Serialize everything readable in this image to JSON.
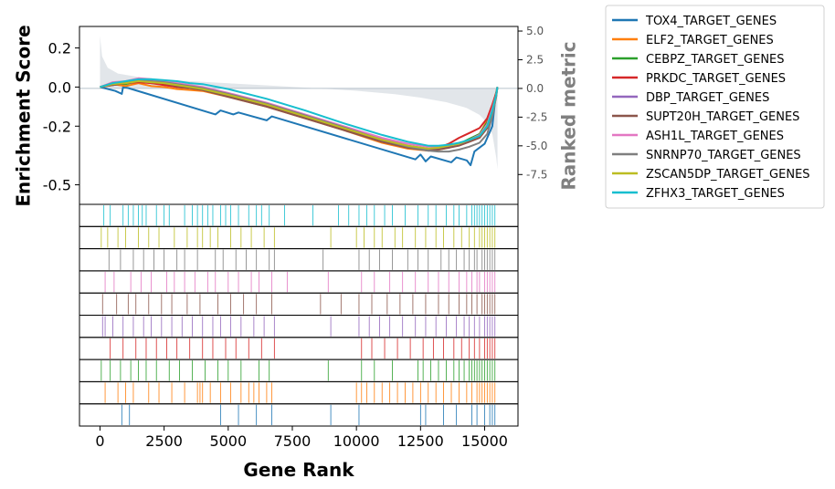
{
  "chart_data": {
    "type": "line",
    "title": "",
    "xlabel": "Gene Rank",
    "ylabel": "Enrichment Score",
    "y2label": "Ranked metric",
    "xlim": [
      -800,
      16300
    ],
    "ylim": [
      -0.6,
      0.31
    ],
    "y2lim": [
      -10.1,
      5.4
    ],
    "x_ticks": [
      0,
      2500,
      5000,
      7500,
      10000,
      12500,
      15000
    ],
    "x_tick_labels": [
      "0",
      "2500",
      "5000",
      "7500",
      "10000",
      "12500",
      "15000"
    ],
    "y_ticks": [
      0.2,
      0.0,
      -0.2,
      -0.5
    ],
    "y_tick_labels": [
      "0.2",
      "0.0",
      "-0.2",
      "-0.5"
    ],
    "y2_ticks": [
      5.0,
      2.5,
      0.0,
      -2.5,
      -5.0,
      -7.5
    ],
    "y2_tick_labels": [
      "5.0",
      "2.5",
      "0.0",
      "-2.5",
      "-5.0",
      "-7.5"
    ],
    "grid": false,
    "legend_position": "outside-right",
    "n_genes": 15500,
    "ranked_metric": {
      "x": [
        0,
        80,
        300,
        700,
        1500,
        3000,
        5000,
        7000,
        8500,
        10000,
        11500,
        12500,
        13500,
        14300,
        14800,
        15100,
        15300,
        15450,
        15500
      ],
      "y": [
        4.6,
        2.8,
        1.8,
        1.3,
        1.0,
        0.7,
        0.45,
        0.2,
        0.0,
        -0.2,
        -0.5,
        -0.8,
        -1.2,
        -1.7,
        -2.3,
        -3.0,
        -4.0,
        -6.0,
        -7.0
      ],
      "color": "#d5dbe1"
    },
    "series": [
      {
        "name": "TOX4_TARGET_GENES",
        "color": "#1f77b4",
        "x": [
          0,
          600,
          850,
          900,
          1100,
          4500,
          4700,
          5200,
          5400,
          6500,
          6700,
          12300,
          12500,
          12700,
          12900,
          13700,
          13900,
          14300,
          14450,
          14600,
          15000,
          15300,
          15400,
          15500
        ],
        "y": [
          0.0,
          -0.02,
          -0.035,
          0.0,
          -0.005,
          -0.14,
          -0.12,
          -0.14,
          -0.13,
          -0.17,
          -0.15,
          -0.37,
          -0.345,
          -0.38,
          -0.355,
          -0.385,
          -0.36,
          -0.375,
          -0.4,
          -0.33,
          -0.29,
          -0.2,
          -0.08,
          0.0
        ]
      },
      {
        "name": "ELF2_TARGET_GENES",
        "color": "#ff7f0e",
        "x": [
          0,
          500,
          1000,
          1500,
          2000,
          2500,
          3000,
          3500,
          4000,
          5000,
          6500,
          8000,
          9500,
          11000,
          12000,
          12800,
          13200,
          13600,
          14000,
          14400,
          14800,
          15100,
          15300,
          15450,
          15500
        ],
        "y": [
          0.0,
          0.015,
          0.005,
          0.02,
          0.005,
          0.0,
          -0.01,
          -0.015,
          -0.02,
          -0.05,
          -0.1,
          -0.16,
          -0.22,
          -0.285,
          -0.315,
          -0.325,
          -0.32,
          -0.31,
          -0.29,
          -0.27,
          -0.24,
          -0.17,
          -0.1,
          -0.03,
          0.0
        ]
      },
      {
        "name": "CEBPZ_TARGET_GENES",
        "color": "#2ca02c",
        "x": [
          0,
          500,
          1000,
          1500,
          2000,
          2500,
          3000,
          3500,
          4000,
          5000,
          6500,
          8000,
          9500,
          11000,
          12000,
          12800,
          13200,
          13600,
          14000,
          14400,
          14800,
          15100,
          15300,
          15450,
          15500
        ],
        "y": [
          0.0,
          0.02,
          0.015,
          0.03,
          0.02,
          0.015,
          0.0,
          -0.005,
          -0.01,
          -0.04,
          -0.09,
          -0.15,
          -0.21,
          -0.27,
          -0.305,
          -0.32,
          -0.315,
          -0.305,
          -0.29,
          -0.265,
          -0.24,
          -0.18,
          -0.1,
          -0.03,
          0.0
        ]
      },
      {
        "name": "PRKDC_TARGET_GENES",
        "color": "#d62728",
        "x": [
          0,
          500,
          1000,
          1500,
          2000,
          2500,
          3000,
          3500,
          4000,
          5000,
          6500,
          8000,
          9500,
          11000,
          12000,
          12800,
          13200,
          13600,
          14000,
          14400,
          14800,
          15100,
          15300,
          15450,
          15500
        ],
        "y": [
          0.0,
          0.01,
          0.02,
          0.025,
          0.02,
          0.01,
          0.0,
          -0.005,
          -0.015,
          -0.045,
          -0.095,
          -0.155,
          -0.215,
          -0.28,
          -0.31,
          -0.32,
          -0.31,
          -0.29,
          -0.26,
          -0.235,
          -0.21,
          -0.16,
          -0.09,
          -0.03,
          0.0
        ]
      },
      {
        "name": "DBP_TARGET_GENES",
        "color": "#9467bd",
        "x": [
          0,
          500,
          1000,
          1500,
          2000,
          2500,
          3000,
          3500,
          4000,
          5000,
          6500,
          8000,
          9500,
          11000,
          12000,
          12800,
          13200,
          13600,
          14000,
          14400,
          14800,
          15100,
          15300,
          15450,
          15500
        ],
        "y": [
          0.0,
          0.02,
          0.025,
          0.035,
          0.03,
          0.02,
          0.01,
          0.0,
          -0.01,
          -0.04,
          -0.09,
          -0.15,
          -0.205,
          -0.265,
          -0.3,
          -0.315,
          -0.315,
          -0.31,
          -0.295,
          -0.275,
          -0.25,
          -0.2,
          -0.12,
          -0.04,
          0.0
        ]
      },
      {
        "name": "SUPT20H_TARGET_GENES",
        "color": "#8c564b",
        "x": [
          0,
          500,
          1000,
          1500,
          2000,
          2500,
          3000,
          3500,
          4000,
          5000,
          6500,
          8000,
          9500,
          11000,
          12000,
          12800,
          13200,
          13600,
          14000,
          14400,
          14800,
          15100,
          15300,
          15450,
          15500
        ],
        "y": [
          0.0,
          0.01,
          0.02,
          0.03,
          0.025,
          0.02,
          0.005,
          -0.005,
          -0.015,
          -0.05,
          -0.1,
          -0.16,
          -0.22,
          -0.28,
          -0.31,
          -0.325,
          -0.32,
          -0.31,
          -0.3,
          -0.28,
          -0.26,
          -0.21,
          -0.13,
          -0.05,
          0.0
        ]
      },
      {
        "name": "ASH1L_TARGET_GENES",
        "color": "#e377c2",
        "x": [
          0,
          500,
          1000,
          1500,
          2000,
          2500,
          3000,
          3500,
          4000,
          5000,
          6500,
          8000,
          9500,
          11000,
          12000,
          12800,
          13200,
          13600,
          14000,
          14400,
          14800,
          15100,
          15300,
          15450,
          15500
        ],
        "y": [
          0.0,
          0.025,
          0.03,
          0.045,
          0.04,
          0.03,
          0.02,
          0.01,
          0.0,
          -0.03,
          -0.08,
          -0.14,
          -0.2,
          -0.26,
          -0.29,
          -0.305,
          -0.305,
          -0.3,
          -0.29,
          -0.27,
          -0.245,
          -0.19,
          -0.11,
          -0.04,
          0.0
        ]
      },
      {
        "name": "SNRNP70_TARGET_GENES",
        "color": "#7f7f7f",
        "x": [
          0,
          500,
          1000,
          1500,
          2000,
          2500,
          3000,
          3500,
          4000,
          5000,
          6500,
          8000,
          9500,
          11000,
          12000,
          12800,
          13200,
          13600,
          14000,
          14400,
          14800,
          15100,
          15300,
          15450,
          15500
        ],
        "y": [
          0.0,
          0.02,
          0.025,
          0.035,
          0.03,
          0.025,
          0.015,
          0.005,
          -0.005,
          -0.035,
          -0.085,
          -0.145,
          -0.205,
          -0.27,
          -0.305,
          -0.325,
          -0.33,
          -0.33,
          -0.32,
          -0.305,
          -0.285,
          -0.24,
          -0.15,
          -0.05,
          0.0
        ]
      },
      {
        "name": "ZSCAN5DP_TARGET_GENES",
        "color": "#bcbd22",
        "x": [
          0,
          500,
          1000,
          1500,
          2000,
          2500,
          3000,
          3500,
          4000,
          5000,
          6500,
          8000,
          9500,
          11000,
          12000,
          12800,
          13200,
          13600,
          14000,
          14400,
          14800,
          15100,
          15300,
          15450,
          15500
        ],
        "y": [
          0.0,
          0.015,
          0.02,
          0.03,
          0.025,
          0.02,
          0.01,
          0.0,
          -0.01,
          -0.04,
          -0.09,
          -0.15,
          -0.21,
          -0.27,
          -0.3,
          -0.315,
          -0.31,
          -0.3,
          -0.29,
          -0.27,
          -0.25,
          -0.2,
          -0.12,
          -0.04,
          0.0
        ]
      },
      {
        "name": "ZFHX3_TARGET_GENES",
        "color": "#17becf",
        "x": [
          0,
          500,
          1000,
          1500,
          2000,
          2500,
          3000,
          3500,
          4000,
          5000,
          6500,
          8000,
          9500,
          11000,
          12000,
          12800,
          13200,
          13600,
          14000,
          14400,
          14800,
          15100,
          15300,
          15450,
          15500
        ],
        "y": [
          0.0,
          0.02,
          0.03,
          0.04,
          0.04,
          0.035,
          0.03,
          0.02,
          0.015,
          -0.01,
          -0.06,
          -0.12,
          -0.185,
          -0.245,
          -0.28,
          -0.3,
          -0.3,
          -0.295,
          -0.285,
          -0.27,
          -0.25,
          -0.2,
          -0.12,
          -0.04,
          0.0
        ]
      }
    ],
    "hit_rows": [
      {
        "name": "ZFHX3_TARGET_GENES",
        "color": "#17becf",
        "hits": [
          150,
          400,
          900,
          1100,
          1300,
          1500,
          1650,
          1800,
          2200,
          2500,
          2700,
          3300,
          3600,
          3800,
          4000,
          4200,
          4400,
          4700,
          4900,
          5100,
          5400,
          5800,
          6100,
          6300,
          6600,
          7200,
          8300,
          9300,
          9700,
          10100,
          10400,
          10700,
          11100,
          11400,
          11900,
          12400,
          12800,
          13100,
          13500,
          13800,
          14000,
          14300,
          14500,
          14600,
          14700,
          14800,
          14900,
          15000,
          15100,
          15200,
          15300,
          15400
        ]
      },
      {
        "name": "ZSCAN5DP_TARGET_GENES",
        "color": "#bcbd22",
        "hits": [
          50,
          300,
          700,
          1000,
          1500,
          1900,
          2300,
          2900,
          3400,
          3800,
          4000,
          4300,
          4600,
          5100,
          5500,
          5900,
          6400,
          6800,
          9000,
          10000,
          10300,
          10700,
          11000,
          11500,
          11800,
          12300,
          12700,
          13100,
          13400,
          13800,
          14100,
          14400,
          14600,
          14800,
          14900,
          15000,
          15100,
          15200,
          15300,
          15400
        ]
      },
      {
        "name": "SNRNP70_TARGET_GENES",
        "color": "#7f7f7f",
        "hits": [
          350,
          800,
          1300,
          1700,
          2100,
          2500,
          3000,
          3300,
          3800,
          4500,
          4800,
          5300,
          5700,
          6100,
          6600,
          6800,
          8700,
          10100,
          10500,
          10900,
          11400,
          12000,
          12400,
          12800,
          13300,
          13600,
          13900,
          14200,
          14400,
          14600,
          14700,
          14900,
          15000,
          15100,
          15200,
          15300,
          15400
        ]
      },
      {
        "name": "ASH1L_TARGET_GENES",
        "color": "#e377c2",
        "hits": [
          200,
          550,
          1200,
          1600,
          2000,
          2600,
          2900,
          3300,
          3700,
          4200,
          4500,
          5000,
          5400,
          5900,
          6200,
          6700,
          7300,
          8900,
          10200,
          10700,
          11300,
          11800,
          12300,
          12800,
          13200,
          13600,
          14000,
          14300,
          14500,
          14700,
          14800,
          15000,
          15100,
          15200,
          15300,
          15400
        ]
      },
      {
        "name": "SUPT20H_TARGET_GENES",
        "color": "#8c564b",
        "hits": [
          100,
          650,
          1100,
          1400,
          1900,
          2400,
          2800,
          3400,
          3900,
          4600,
          5100,
          5600,
          6100,
          6700,
          8600,
          9400,
          10100,
          10600,
          11200,
          11700,
          12200,
          12700,
          13200,
          13600,
          14000,
          14300,
          14500,
          14700,
          14900,
          15000,
          15100,
          15200,
          15300,
          15400
        ]
      },
      {
        "name": "DBP_TARGET_GENES",
        "color": "#9467bd",
        "hits": [
          100,
          200,
          500,
          900,
          1300,
          1700,
          2000,
          2400,
          2800,
          3200,
          3600,
          4000,
          4400,
          4700,
          5100,
          5500,
          6000,
          6400,
          6800,
          9000,
          10100,
          10500,
          10900,
          11300,
          11800,
          12300,
          12700,
          13100,
          13500,
          13900,
          14200,
          14400,
          14600,
          14800,
          15000,
          15100,
          15200,
          15300,
          15400
        ]
      },
      {
        "name": "PRKDC_TARGET_GENES",
        "color": "#d62728",
        "hits": [
          400,
          900,
          1400,
          1800,
          2200,
          2600,
          3000,
          3500,
          4000,
          4400,
          4900,
          5300,
          5800,
          6300,
          6800,
          10200,
          10600,
          11100,
          11600,
          12100,
          12600,
          13000,
          13400,
          13800,
          14100,
          14400,
          14600,
          14800,
          15000,
          15100,
          15200,
          15300,
          15400
        ]
      },
      {
        "name": "CEBPZ_TARGET_GENES",
        "color": "#2ca02c",
        "hits": [
          50,
          400,
          800,
          1200,
          1500,
          1800,
          2200,
          2700,
          3100,
          3600,
          4100,
          4600,
          5000,
          5500,
          6200,
          6600,
          8900,
          10200,
          10700,
          11400,
          12400,
          12600,
          12900,
          13200,
          13500,
          13800,
          14000,
          14200,
          14400,
          14500,
          14600,
          14700,
          14800,
          14900,
          15000,
          15100,
          15200,
          15300,
          15400
        ]
      },
      {
        "name": "ELF2_TARGET_GENES",
        "color": "#ff7f0e",
        "hits": [
          200,
          700,
          1000,
          1300,
          1900,
          2300,
          2800,
          3300,
          3800,
          3900,
          4000,
          4300,
          4700,
          5100,
          5500,
          5800,
          6000,
          6200,
          6500,
          6700,
          10000,
          10200,
          10400,
          10700,
          11000,
          11300,
          11600,
          11900,
          12200,
          12500,
          12800,
          13100,
          13400,
          13700,
          14000,
          14300,
          14500,
          14700,
          14800,
          14900,
          15000,
          15100,
          15200,
          15300,
          15400
        ]
      },
      {
        "name": "TOX4_TARGET_GENES",
        "color": "#1f77b4",
        "hits": [
          850,
          1150,
          4700,
          5400,
          6100,
          6700,
          9000,
          10100,
          12500,
          12700,
          13400,
          13900,
          14500,
          14700,
          15000,
          15200,
          15300,
          15400
        ]
      }
    ]
  }
}
